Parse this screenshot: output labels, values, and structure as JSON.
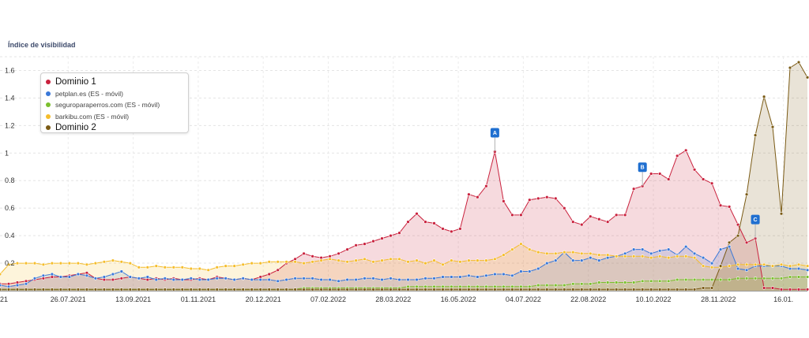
{
  "chart_data": {
    "type": "area",
    "title": "Índice de visibilidad",
    "ylim": [
      0,
      1.7
    ],
    "yticks": [
      "0.2",
      "0.4",
      "0.6",
      "0.8",
      "1",
      "1.2",
      "1.4",
      "1.6"
    ],
    "xtick_labels": [
      "21",
      "26.07.2021",
      "13.09.2021",
      "01.11.2021",
      "20.12.2021",
      "07.02.2022",
      "28.03.2022",
      "16.05.2022",
      "04.07.2022",
      "22.08.2022",
      "10.10.2022",
      "28.11.2022",
      "16.01."
    ],
    "legend_position": "top-left",
    "grid": true,
    "series": [
      {
        "name": "Dominio 1",
        "color": "#c9213d",
        "legend_style": "big",
        "values": [
          0.05,
          0.05,
          0.06,
          0.07,
          0.08,
          0.09,
          0.1,
          0.1,
          0.11,
          0.12,
          0.13,
          0.09,
          0.08,
          0.08,
          0.09,
          0.1,
          0.09,
          0.08,
          0.09,
          0.08,
          0.09,
          0.08,
          0.08,
          0.09,
          0.08,
          0.1,
          0.09,
          0.08,
          0.09,
          0.08,
          0.1,
          0.12,
          0.15,
          0.2,
          0.23,
          0.27,
          0.25,
          0.24,
          0.25,
          0.27,
          0.3,
          0.33,
          0.34,
          0.36,
          0.38,
          0.4,
          0.42,
          0.5,
          0.56,
          0.5,
          0.49,
          0.45,
          0.43,
          0.45,
          0.7,
          0.68,
          0.76,
          1.01,
          0.65,
          0.55,
          0.55,
          0.66,
          0.67,
          0.68,
          0.67,
          0.6,
          0.5,
          0.48,
          0.54,
          0.52,
          0.5,
          0.55,
          0.55,
          0.74,
          0.76,
          0.85,
          0.85,
          0.81,
          0.98,
          1.02,
          0.88,
          0.81,
          0.78,
          0.62,
          0.61,
          0.48,
          0.35,
          0.38,
          0.02,
          0.02,
          0.01,
          0.01,
          0.01,
          0.01
        ]
      },
      {
        "name": "petplan.es (ES - móvil)",
        "color": "#3a78d8",
        "legend_style": "small",
        "values": [
          0.04,
          0.03,
          0.04,
          0.05,
          0.09,
          0.11,
          0.12,
          0.1,
          0.1,
          0.12,
          0.11,
          0.09,
          0.1,
          0.12,
          0.14,
          0.1,
          0.09,
          0.1,
          0.08,
          0.09,
          0.08,
          0.08,
          0.09,
          0.08,
          0.08,
          0.09,
          0.09,
          0.08,
          0.09,
          0.08,
          0.08,
          0.08,
          0.07,
          0.08,
          0.09,
          0.09,
          0.09,
          0.08,
          0.08,
          0.07,
          0.08,
          0.08,
          0.09,
          0.09,
          0.08,
          0.09,
          0.08,
          0.08,
          0.08,
          0.09,
          0.09,
          0.1,
          0.1,
          0.1,
          0.11,
          0.1,
          0.11,
          0.12,
          0.12,
          0.11,
          0.14,
          0.14,
          0.16,
          0.2,
          0.22,
          0.28,
          0.22,
          0.22,
          0.24,
          0.22,
          0.24,
          0.25,
          0.27,
          0.3,
          0.3,
          0.27,
          0.29,
          0.3,
          0.26,
          0.32,
          0.27,
          0.24,
          0.2,
          0.3,
          0.32,
          0.16,
          0.15,
          0.18,
          0.18,
          0.18,
          0.18,
          0.16,
          0.16,
          0.15
        ]
      },
      {
        "name": "seguroparaperros.com (ES - móvil)",
        "color": "#7bbf2e",
        "legend_style": "small",
        "values": [
          0.01,
          0.01,
          0.01,
          0.01,
          0.01,
          0.01,
          0.01,
          0.01,
          0.01,
          0.01,
          0.01,
          0.01,
          0.01,
          0.01,
          0.01,
          0.01,
          0.01,
          0.01,
          0.01,
          0.01,
          0.01,
          0.01,
          0.01,
          0.01,
          0.01,
          0.01,
          0.01,
          0.01,
          0.01,
          0.01,
          0.01,
          0.01,
          0.01,
          0.01,
          0.01,
          0.02,
          0.02,
          0.02,
          0.02,
          0.02,
          0.02,
          0.02,
          0.02,
          0.02,
          0.02,
          0.02,
          0.02,
          0.03,
          0.03,
          0.03,
          0.03,
          0.03,
          0.03,
          0.03,
          0.03,
          0.03,
          0.03,
          0.03,
          0.03,
          0.03,
          0.03,
          0.03,
          0.04,
          0.04,
          0.04,
          0.04,
          0.05,
          0.05,
          0.05,
          0.06,
          0.06,
          0.06,
          0.06,
          0.06,
          0.07,
          0.07,
          0.07,
          0.07,
          0.08,
          0.08,
          0.08,
          0.08,
          0.08,
          0.08,
          0.08,
          0.09,
          0.09,
          0.09,
          0.09,
          0.09,
          0.09,
          0.1,
          0.1,
          0.1
        ]
      },
      {
        "name": "barkibu.com (ES - móvil)",
        "color": "#f5bd2b",
        "legend_style": "small",
        "values": [
          0.12,
          0.19,
          0.2,
          0.2,
          0.2,
          0.19,
          0.2,
          0.2,
          0.2,
          0.2,
          0.19,
          0.2,
          0.21,
          0.22,
          0.21,
          0.2,
          0.17,
          0.17,
          0.18,
          0.17,
          0.17,
          0.17,
          0.16,
          0.16,
          0.15,
          0.17,
          0.18,
          0.18,
          0.19,
          0.2,
          0.2,
          0.21,
          0.21,
          0.21,
          0.21,
          0.2,
          0.21,
          0.22,
          0.23,
          0.22,
          0.21,
          0.22,
          0.23,
          0.21,
          0.22,
          0.23,
          0.23,
          0.21,
          0.22,
          0.2,
          0.22,
          0.19,
          0.22,
          0.21,
          0.22,
          0.22,
          0.22,
          0.23,
          0.26,
          0.3,
          0.34,
          0.3,
          0.28,
          0.27,
          0.27,
          0.28,
          0.28,
          0.27,
          0.27,
          0.26,
          0.26,
          0.25,
          0.25,
          0.25,
          0.25,
          0.24,
          0.25,
          0.24,
          0.25,
          0.25,
          0.24,
          0.18,
          0.17,
          0.17,
          0.18,
          0.19,
          0.19,
          0.19,
          0.19,
          0.18,
          0.19,
          0.18,
          0.19,
          0.18
        ]
      },
      {
        "name": "Dominio 2",
        "color": "#7a5a14",
        "legend_style": "big",
        "values": [
          0.01,
          0.01,
          0.01,
          0.01,
          0.01,
          0.01,
          0.01,
          0.01,
          0.01,
          0.01,
          0.01,
          0.01,
          0.01,
          0.01,
          0.01,
          0.01,
          0.01,
          0.01,
          0.01,
          0.01,
          0.01,
          0.01,
          0.01,
          0.01,
          0.01,
          0.01,
          0.01,
          0.01,
          0.01,
          0.01,
          0.01,
          0.01,
          0.01,
          0.01,
          0.01,
          0.01,
          0.01,
          0.01,
          0.01,
          0.01,
          0.01,
          0.01,
          0.01,
          0.01,
          0.01,
          0.01,
          0.01,
          0.01,
          0.01,
          0.01,
          0.01,
          0.01,
          0.01,
          0.01,
          0.01,
          0.01,
          0.01,
          0.01,
          0.01,
          0.01,
          0.01,
          0.01,
          0.01,
          0.01,
          0.01,
          0.01,
          0.01,
          0.01,
          0.01,
          0.01,
          0.01,
          0.01,
          0.01,
          0.01,
          0.01,
          0.01,
          0.01,
          0.01,
          0.01,
          0.01,
          0.01,
          0.02,
          0.02,
          0.18,
          0.35,
          0.4,
          0.7,
          1.13,
          1.41,
          1.19,
          0.56,
          1.62,
          1.66,
          1.55
        ]
      }
    ],
    "annotations": [
      {
        "label": "A",
        "index": 57
      },
      {
        "label": "B",
        "index": 74
      },
      {
        "label": "C",
        "index": 87
      }
    ]
  }
}
